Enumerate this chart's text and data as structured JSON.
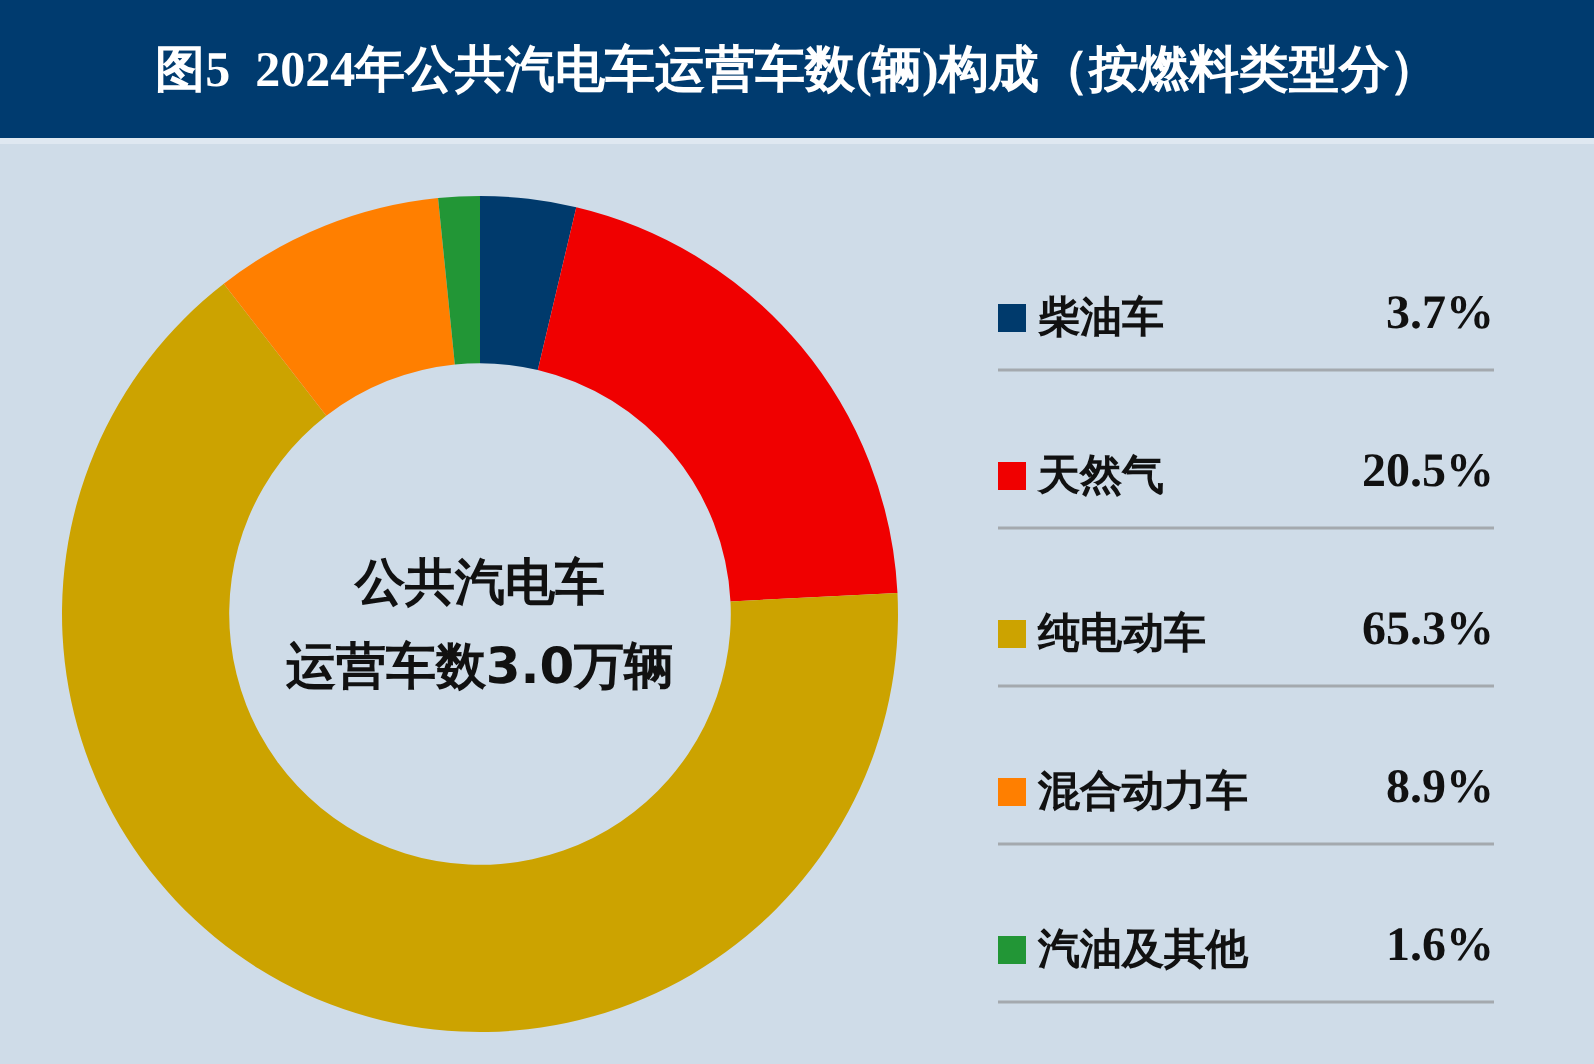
{
  "chart_data": {
    "type": "donut",
    "title": "图5  2024年公共汽电车运营车数(辆)构成（按燃料类型分）",
    "categories": [
      "柴油车",
      "天然气",
      "纯电动车",
      "混合动力车",
      "汽油及其他"
    ],
    "values": [
      3.7,
      20.5,
      65.3,
      8.9,
      1.6
    ],
    "value_labels": [
      "3.7%",
      "20.5%",
      "65.3%",
      "8.9%",
      "1.6%"
    ],
    "colors": [
      "#003a6c",
      "#f00000",
      "#cca300",
      "#ff7f00",
      "#229636"
    ],
    "annotations": [
      "公共汽电车",
      "运营车数3.0万辆"
    ],
    "legend": "right"
  }
}
